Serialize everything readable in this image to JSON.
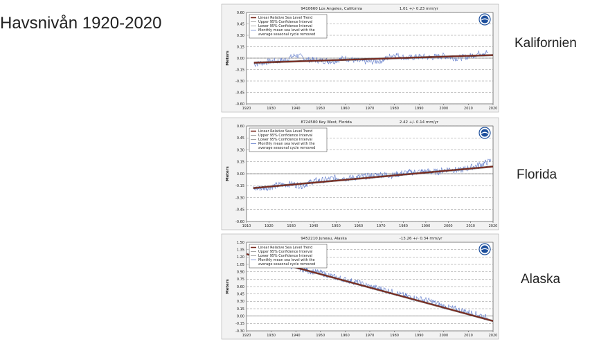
{
  "slide": {
    "title": "Havsnivån 1920-2020",
    "regions": [
      "Kalifornien",
      "Florida",
      "Alaska"
    ]
  },
  "colors": {
    "data_line": "#5b77c9",
    "trend": "#7a2a1f",
    "grid": "#888888",
    "logo_blue": "#1d4f9c"
  },
  "legend_items": [
    "Linear Relative Sea Level Trend",
    "Upper 95% Confidence Interval",
    "Lower 95% Confidence Interval",
    "Monthly mean sea level with the",
    "average seasonal cycle removed"
  ],
  "chart_data": [
    {
      "type": "line",
      "title": "9410660 Los Angeles, California",
      "rate": "1.01 +/-  0.23 mm/yr",
      "ylabel": "Meters",
      "xlabel": "",
      "x_ticks": [
        "1920",
        "1930",
        "1940",
        "1950",
        "1960",
        "1970",
        "1980",
        "1990",
        "2000",
        "2010",
        "2020"
      ],
      "y_ticks": [
        "0.60",
        "0.45",
        "0.30",
        "0.15",
        "0.00",
        "-0.15",
        "-0.30",
        "-0.45",
        "-0.60"
      ],
      "xlim": [
        1920,
        2020
      ],
      "ylim": [
        -0.6,
        0.6
      ],
      "trend": {
        "start": [
          1923,
          -0.06
        ],
        "end": [
          2020,
          0.04
        ]
      },
      "series": [
        {
          "name": "Monthly mean sea level",
          "x": [
            1923,
            1930,
            1935,
            1940,
            1945,
            1950,
            1955,
            1960,
            1965,
            1970,
            1975,
            1980,
            1985,
            1990,
            1995,
            2000,
            2005,
            2010,
            2015,
            2018
          ],
          "values": [
            -0.08,
            -0.04,
            -0.03,
            0.04,
            -0.02,
            -0.03,
            -0.04,
            0.0,
            -0.04,
            -0.05,
            -0.03,
            0.05,
            0.0,
            0.02,
            0.01,
            0.03,
            0.0,
            0.02,
            0.07,
            0.08
          ]
        }
      ]
    },
    {
      "type": "line",
      "title": "8724580 Key West, Florida",
      "rate": "2.42 +/-  0.14 mm/yr",
      "ylabel": "Meters",
      "xlabel": "",
      "x_ticks": [
        "1910",
        "1920",
        "1930",
        "1940",
        "1950",
        "1960",
        "1970",
        "1980",
        "1990",
        "2000",
        "2010",
        "2020"
      ],
      "y_ticks": [
        "0.60",
        "0.45",
        "0.30",
        "0.15",
        "0.00",
        "-0.15",
        "-0.30",
        "-0.45",
        "-0.60"
      ],
      "xlim": [
        1910,
        2020
      ],
      "ylim": [
        -0.6,
        0.6
      ],
      "trend": {
        "start": [
          1913,
          -0.18
        ],
        "end": [
          2020,
          0.09
        ]
      },
      "series": [
        {
          "name": "Monthly mean sea level",
          "x": [
            1913,
            1920,
            1925,
            1930,
            1935,
            1940,
            1945,
            1950,
            1955,
            1960,
            1965,
            1970,
            1975,
            1980,
            1985,
            1990,
            1995,
            2000,
            2005,
            2010,
            2015,
            2019
          ],
          "values": [
            -0.19,
            -0.17,
            -0.14,
            -0.13,
            -0.15,
            -0.09,
            -0.08,
            -0.05,
            -0.06,
            -0.04,
            -0.03,
            -0.01,
            -0.02,
            0.01,
            0.02,
            0.03,
            0.02,
            0.06,
            0.04,
            0.08,
            0.12,
            0.16
          ]
        }
      ]
    },
    {
      "type": "line",
      "title": "9452210 Juneau, Alaska",
      "rate": "-13.26 +/-  0.34 mm/yr",
      "ylabel": "Meters",
      "xlabel": "",
      "x_ticks": [
        "1920",
        "1930",
        "1940",
        "1950",
        "1960",
        "1970",
        "1980",
        "1990",
        "2000",
        "2010",
        "2020"
      ],
      "y_ticks": [
        "1.50",
        "1.35",
        "1.20",
        "1.05",
        "0.90",
        "0.75",
        "0.60",
        "0.45",
        "0.30",
        "0.15",
        "0.00",
        "-0.15",
        "-0.30"
      ],
      "xlim": [
        1920,
        2020
      ],
      "ylim": [
        -0.3,
        1.5
      ],
      "trend": {
        "start": [
          1920,
          1.26
        ],
        "end": [
          2020,
          -0.1
        ]
      },
      "series": [
        {
          "name": "Monthly mean sea level",
          "x": [
            1936,
            1940,
            1945,
            1950,
            1955,
            1960,
            1965,
            1970,
            1975,
            1980,
            1985,
            1990,
            1995,
            2000,
            2005,
            2010,
            2015,
            2018
          ],
          "values": [
            1.04,
            1.0,
            0.92,
            0.88,
            0.8,
            0.74,
            0.68,
            0.6,
            0.55,
            0.48,
            0.4,
            0.35,
            0.3,
            0.2,
            0.14,
            0.08,
            0.02,
            -0.05
          ]
        }
      ]
    }
  ]
}
